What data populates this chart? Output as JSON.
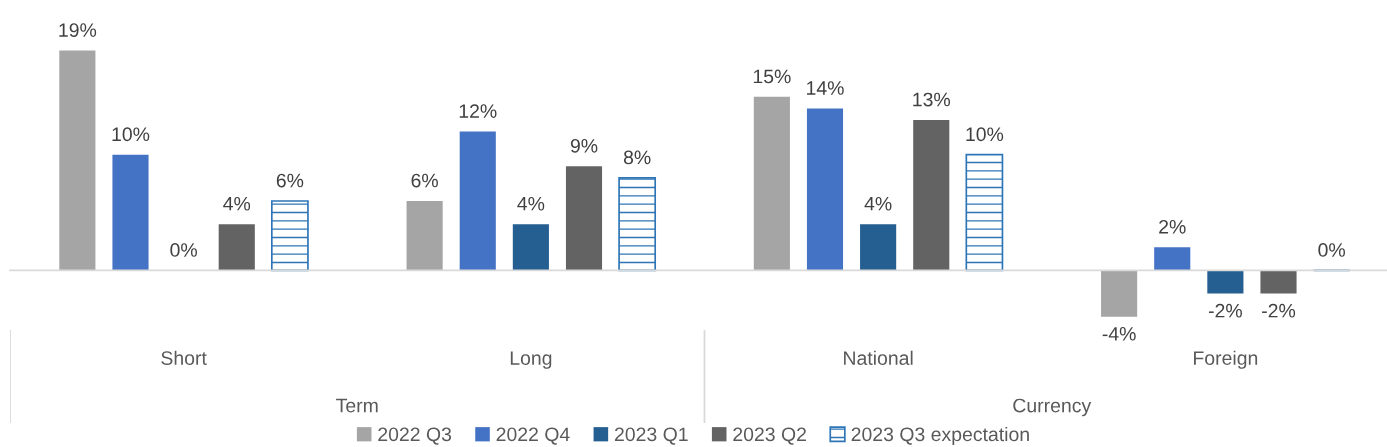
{
  "chart_data": {
    "type": "bar",
    "categories": [
      "Short",
      "Long",
      "National",
      "Foreign"
    ],
    "annotations": [
      "Term",
      "Currency"
    ],
    "series": [
      {
        "name": "2022 Q3",
        "color": "#a5a5a5",
        "values": [
          19,
          6,
          15,
          -4
        ],
        "value_labels": [
          "19%",
          "6%",
          "15%",
          "-4%"
        ]
      },
      {
        "name": "2022 Q4",
        "color": "#4472c4",
        "values": [
          10,
          12,
          14,
          2
        ],
        "value_labels": [
          "10%",
          "12%",
          "14%",
          "2%"
        ]
      },
      {
        "name": "2023 Q1",
        "color": "#255e91",
        "values": [
          0,
          4,
          4,
          -2
        ],
        "value_labels": [
          "0%",
          "4%",
          "4%",
          "-2%"
        ]
      },
      {
        "name": "2023 Q2",
        "color": "#636363",
        "values": [
          4,
          9,
          13,
          -2
        ],
        "value_labels": [
          "4%",
          "9%",
          "13%",
          "-2%"
        ]
      },
      {
        "name": "2023 Q3 expectation",
        "color": "#2e75b6",
        "line_style": "dashed",
        "values": [
          6,
          8,
          10,
          0
        ],
        "value_labels": [
          "6%",
          "8%",
          "10%",
          "0%"
        ]
      }
    ],
    "legend": "bottom"
  }
}
